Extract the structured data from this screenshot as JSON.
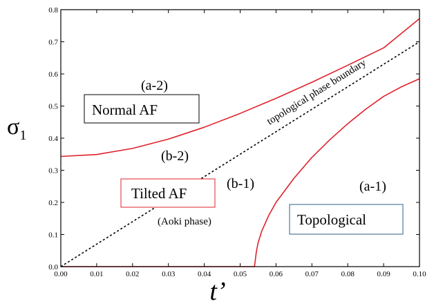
{
  "chart_data": {
    "type": "line",
    "xlabel": "t’",
    "ylabel": "σ",
    "ylabel_subscript": "1",
    "xlim": [
      0.0,
      0.1
    ],
    "ylim": [
      0.0,
      0.8
    ],
    "x_ticks": [
      "0.00",
      "0.01",
      "0.02",
      "0.03",
      "0.04",
      "0.05",
      "0.06",
      "0.07",
      "0.08",
      "0.09",
      "0.10"
    ],
    "y_ticks": [
      "0.0",
      "0.1",
      "0.2",
      "0.3",
      "0.4",
      "0.5",
      "0.6",
      "0.7",
      "0.8"
    ],
    "grid": false,
    "series": [
      {
        "style": "solid",
        "color": "#e0202a",
        "x": [
          0.0,
          0.01,
          0.02,
          0.03,
          0.04,
          0.05,
          0.06,
          0.07,
          0.08,
          0.09,
          0.1
        ],
        "y": [
          0.343,
          0.349,
          0.368,
          0.397,
          0.434,
          0.477,
          0.524,
          0.574,
          0.627,
          0.681,
          0.772
        ]
      },
      {
        "style": "solid",
        "color": "#e0202a",
        "x": [
          0.0,
          0.054,
          0.0545,
          0.055,
          0.056,
          0.058,
          0.06,
          0.065,
          0.07,
          0.075,
          0.08,
          0.085,
          0.09,
          0.095,
          0.1
        ],
        "y": [
          0.0,
          0.0,
          0.045,
          0.074,
          0.11,
          0.16,
          0.2,
          0.275,
          0.34,
          0.395,
          0.445,
          0.49,
          0.53,
          0.56,
          0.585
        ]
      },
      {
        "style": "dotted",
        "color": "#000000",
        "x": [
          0.0,
          0.1
        ],
        "y": [
          0.0,
          0.7
        ]
      }
    ],
    "annotations": {
      "a2": "(a-2)",
      "b2": "(b-2)",
      "b1": "(b-1)",
      "a1": "(a-1)",
      "normal_af": "Normal AF",
      "tilted_af": "Tilted AF",
      "aoki": "(Aoki phase)",
      "topological": "Topological",
      "boundary": "topological phase boundary"
    },
    "box_colors": {
      "normal_af": "#000000",
      "tilted_af": "#e0202a",
      "topological": "#2c5f8a"
    }
  }
}
